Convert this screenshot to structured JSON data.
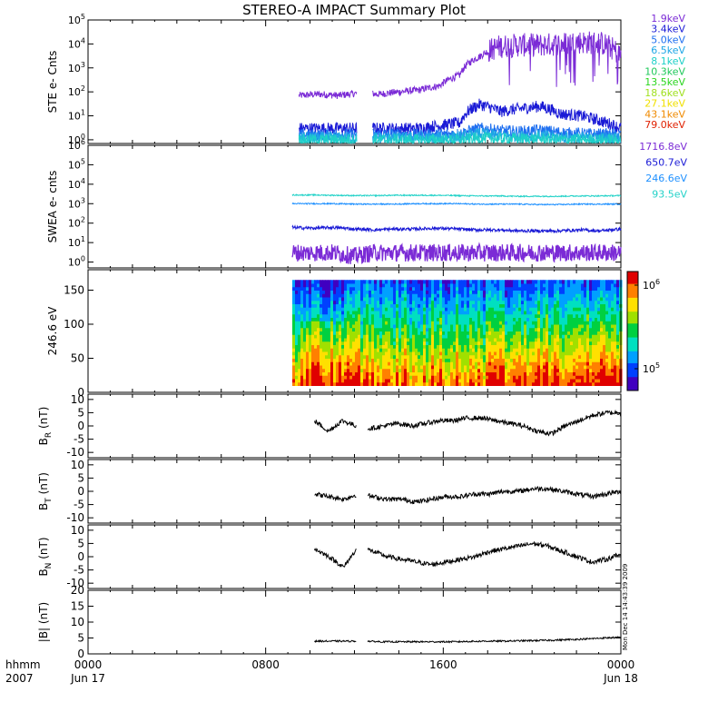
{
  "title": "STEREO-A IMPACT Summary Plot",
  "time_axis": {
    "unit_label": "hhmm",
    "year_label": "2007",
    "ticks": [
      {
        "hour": 0,
        "label": "0000",
        "sublabel": "Jun 17"
      },
      {
        "hour": 8,
        "label": "0800",
        "sublabel": ""
      },
      {
        "hour": 16,
        "label": "1600",
        "sublabel": ""
      },
      {
        "hour": 24,
        "label": "0000",
        "sublabel": "Jun 18"
      }
    ]
  },
  "timestamp_text": "Mon Dec 14 14:43:39 2009",
  "chart_data": [
    {
      "type": "line",
      "title": "",
      "ylabel": "STE e- Cnts",
      "yscale": "log",
      "ylim": [
        0.7,
        100000
      ],
      "ytick_labels": [
        "10^0",
        "10^1",
        "10^2",
        "10^3",
        "10^4",
        "10^5"
      ],
      "data_start_hour": 9.5,
      "gaps": [
        [
          12.1,
          12.8
        ]
      ],
      "series": [
        {
          "name": "1.9keV",
          "color": "#7b2bd6",
          "values": [
            70,
            80,
            70,
            90,
            80,
            100,
            120,
            180,
            500,
            3000,
            8000,
            9000,
            9000,
            10000,
            12000,
            11000,
            3000
          ]
        },
        {
          "name": "3.4keV",
          "color": "#1a1ad6",
          "values": [
            3,
            3,
            3,
            3,
            3,
            3,
            3,
            4,
            5,
            30,
            15,
            20,
            25,
            12,
            10,
            6,
            3
          ]
        },
        {
          "name": "5.0keV",
          "color": "#1e6ff0",
          "values": [
            1.6,
            1.6,
            1.7,
            1.6,
            1.7,
            1.7,
            1.6,
            1.7,
            1.8,
            3.0,
            2.4,
            2.2,
            2.5,
            2.0,
            1.8,
            1.7,
            1.6
          ]
        },
        {
          "name": "6.5keV",
          "color": "#1ea6e6",
          "values": [
            1.2,
            1.2,
            1.2,
            1.2,
            1.2,
            1.2,
            1.2,
            1.2,
            1.3,
            1.8,
            1.5,
            1.4,
            1.5,
            1.3,
            1.2,
            1.2,
            1.2
          ]
        },
        {
          "name": "8.1keV",
          "color": "#1ed0c8",
          "values": [
            1.0,
            1.0,
            1.0,
            1.0,
            1.0,
            1.0,
            1.0,
            1.0,
            1.0,
            1.2,
            1.1,
            1.1,
            1.1,
            1.0,
            1.0,
            1.0,
            1.0
          ]
        },
        {
          "name": "10.3keV",
          "color": "#1ec85a"
        },
        {
          "name": "13.5keV",
          "color": "#2ad61e"
        },
        {
          "name": "18.6keV",
          "color": "#a0e01e"
        },
        {
          "name": "27.1keV",
          "color": "#f0e000"
        },
        {
          "name": "43.1keV",
          "color": "#f08a00"
        },
        {
          "name": "79.0keV",
          "color": "#e02000"
        }
      ]
    },
    {
      "type": "line",
      "title": "",
      "ylabel": "SWEA e- cnts",
      "yscale": "log",
      "ylim": [
        0.5,
        1000000
      ],
      "ytick_labels": [
        "10^0",
        "10^1",
        "10^2",
        "10^3",
        "10^4",
        "10^5",
        "10^6"
      ],
      "data_start_hour": 9.2,
      "series": [
        {
          "name": "1716.8eV",
          "color": "#7b2bd6",
          "values": [
            3,
            3,
            3,
            2,
            3,
            3,
            3,
            3,
            3,
            3,
            3,
            3,
            3,
            3,
            3,
            3,
            3
          ]
        },
        {
          "name": "650.7eV",
          "color": "#1a1ad6",
          "values": [
            60,
            55,
            60,
            50,
            45,
            50,
            50,
            55,
            50,
            45,
            45,
            40,
            40,
            40,
            45,
            40,
            50
          ]
        },
        {
          "name": "246.6eV",
          "color": "#1e90ff",
          "values": [
            1000,
            1000,
            1000,
            950,
            950,
            950,
            1000,
            1000,
            1000,
            950,
            950,
            950,
            900,
            900,
            950,
            950,
            950
          ]
        },
        {
          "name": "93.5eV",
          "color": "#22d2c8",
          "values": [
            2800,
            2800,
            2700,
            2600,
            2600,
            2700,
            2700,
            2700,
            2600,
            2500,
            2500,
            2400,
            2400,
            2400,
            2500,
            2500,
            2600
          ]
        }
      ]
    },
    {
      "type": "heatmap",
      "title": "",
      "ylabel": "246.6 eV",
      "ylim": [
        0,
        180
      ],
      "y_ticks": [
        0,
        50,
        100,
        150
      ],
      "y_range_data": [
        10,
        165
      ],
      "data_start_hour": 9.2,
      "colorbar": {
        "tick_labels": [
          "10^5",
          "10^6"
        ],
        "colors": [
          "#4000c0",
          "#0040ff",
          "#00a0ff",
          "#00e0c0",
          "#00d040",
          "#a0e000",
          "#ffe000",
          "#ff8000",
          "#e00000"
        ]
      },
      "profile": "high flux near 0-40 (yellow/red), mid flux 50-80 (green), low flux 100-165 (blue)"
    },
    {
      "type": "line",
      "title": "",
      "ylabel": "B_R (nT)",
      "ylim": [
        -12,
        12
      ],
      "y_ticks": [
        10,
        5,
        0,
        -5,
        -10
      ],
      "gaps": [
        [
          12.1,
          12.6
        ]
      ],
      "data_start_hour": 10.2,
      "series": [
        {
          "name": "",
          "color": "#000000",
          "values": [
            2,
            -2,
            2,
            0,
            -1,
            0,
            1,
            0,
            1,
            2,
            2,
            3,
            3,
            2,
            1,
            0,
            -2,
            -3,
            0,
            2,
            4,
            5,
            5
          ]
        }
      ]
    },
    {
      "type": "line",
      "title": "",
      "ylabel": "B_T (nT)",
      "ylim": [
        -12,
        12
      ],
      "y_ticks": [
        10,
        5,
        0,
        -5,
        -10
      ],
      "gaps": [
        [
          12.1,
          12.6
        ]
      ],
      "data_start_hour": 10.2,
      "series": [
        {
          "name": "",
          "color": "#000000",
          "values": [
            -1,
            -2,
            -3,
            -1,
            -2,
            -3,
            -3,
            -4,
            -3,
            -2,
            -2,
            -1,
            -1,
            0,
            0,
            1,
            1,
            0,
            -1,
            -2,
            -1,
            0
          ]
        }
      ]
    },
    {
      "type": "line",
      "title": "",
      "ylabel": "B_N (nT)",
      "ylim": [
        -12,
        12
      ],
      "y_ticks": [
        10,
        5,
        0,
        -5,
        -10
      ],
      "gaps": [
        [
          12.1,
          12.6
        ]
      ],
      "data_start_hour": 10.2,
      "series": [
        {
          "name": "",
          "color": "#000000",
          "values": [
            3,
            0,
            -4,
            4,
            2,
            0,
            -1,
            -2,
            -3,
            -2,
            -1,
            0,
            2,
            3,
            4,
            5,
            4,
            2,
            0,
            -2,
            -1,
            1
          ]
        }
      ]
    },
    {
      "type": "line",
      "title": "",
      "ylabel": "|B| (nT)",
      "ylim": [
        0,
        20
      ],
      "y_ticks": [
        20,
        15,
        10,
        5,
        0
      ],
      "gaps": [
        [
          12.1,
          12.6
        ]
      ],
      "data_start_hour": 10.2,
      "series": [
        {
          "name": "",
          "color": "#000000",
          "values": [
            4,
            4,
            4,
            4,
            3.8,
            3.8,
            3.8,
            3.8,
            3.8,
            3.9,
            4,
            4,
            4.1,
            4.2,
            4.3,
            4.5,
            4.7,
            5.0,
            5.2
          ]
        }
      ]
    }
  ]
}
